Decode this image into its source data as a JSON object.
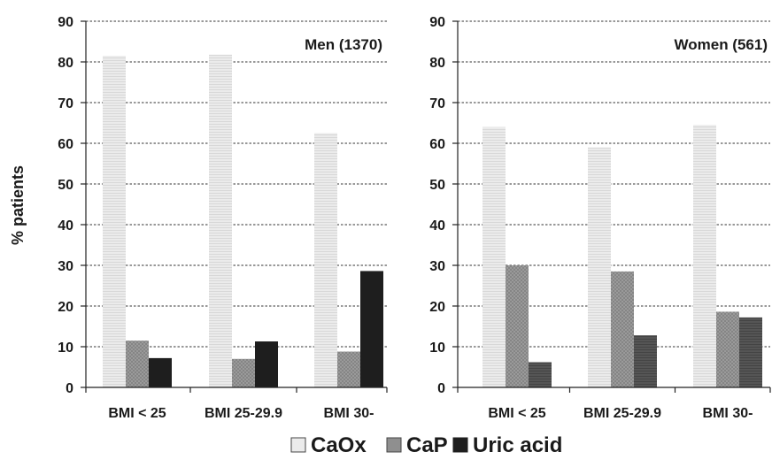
{
  "chart_data": [
    {
      "type": "bar",
      "title": "Men (1370)",
      "ylabel": "% patients",
      "xlabel": "",
      "ylim": [
        0,
        90
      ],
      "yticks": [
        0,
        10,
        20,
        30,
        40,
        50,
        60,
        70,
        80,
        90
      ],
      "grid": true,
      "categories": [
        "BMI < 25",
        "BMI 25-29.9",
        "BMI 30-"
      ],
      "series": [
        {
          "name": "CaOx",
          "values": [
            81.5,
            81.8,
            62.5
          ]
        },
        {
          "name": "CaP",
          "values": [
            11.5,
            7.0,
            8.8
          ]
        },
        {
          "name": "Uric acid",
          "values": [
            7.2,
            11.3,
            28.6
          ]
        }
      ]
    },
    {
      "type": "bar",
      "title": "Women (561)",
      "ylabel": "",
      "xlabel": "",
      "ylim": [
        0,
        90
      ],
      "yticks": [
        0,
        10,
        20,
        30,
        40,
        50,
        60,
        70,
        80,
        90
      ],
      "grid": true,
      "categories": [
        "BMI < 25",
        "BMI 25-29.9",
        "BMI 30-"
      ],
      "series": [
        {
          "name": "CaOx",
          "values": [
            64.0,
            59.0,
            64.5
          ]
        },
        {
          "name": "CaP",
          "values": [
            30.0,
            28.5,
            18.6
          ]
        },
        {
          "name": "Uric acid",
          "values": [
            6.2,
            12.8,
            17.2
          ]
        }
      ]
    }
  ],
  "legend": {
    "position": "bottom",
    "items": [
      {
        "label": "CaOx",
        "swatch": "light"
      },
      {
        "label": "CaP",
        "swatch": "medium"
      },
      {
        "label": "Uric acid",
        "swatch": "dark"
      }
    ]
  },
  "colors": {
    "caox": "#e6e6e6",
    "cap": "#8f8f8f",
    "uric_men": "#1e1e1e",
    "uric_women": "#4d4d4d",
    "grid": "#333333",
    "frame": "#222222"
  }
}
